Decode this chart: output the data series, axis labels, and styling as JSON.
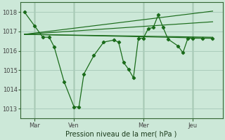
{
  "background_color": "#cce8d8",
  "plot_bg_color": "#cce8d8",
  "line_color": "#1a6b1a",
  "grid_color": "#aaccbb",
  "tick_color": "#444444",
  "xlabel": "Pression niveau de la mer( hPa )",
  "ylim": [
    1012.5,
    1018.5
  ],
  "yticks": [
    1013,
    1014,
    1015,
    1016,
    1017,
    1018
  ],
  "xlim": [
    -0.3,
    14.0
  ],
  "xtick_positions": [
    0.7,
    3.5,
    8.4,
    11.9
  ],
  "xtick_labels": [
    "Mar",
    "Ven",
    "Mer",
    "Jeu"
  ],
  "vline_positions": [
    0.7,
    3.5,
    8.4,
    11.9
  ],
  "main_x": [
    0.0,
    0.7,
    1.3,
    1.75,
    2.1,
    2.8,
    3.5,
    3.85,
    4.2,
    4.9,
    5.6,
    6.3,
    6.65,
    7.0,
    7.35,
    7.7,
    8.05,
    8.4,
    8.75,
    9.1,
    9.45,
    9.8,
    10.15,
    10.85,
    11.2,
    11.55,
    11.9,
    12.6,
    13.3
  ],
  "main_y": [
    1018.0,
    1017.3,
    1016.7,
    1016.7,
    1016.2,
    1014.4,
    1013.1,
    1013.1,
    1014.8,
    1015.75,
    1016.45,
    1016.55,
    1016.45,
    1015.4,
    1015.05,
    1014.6,
    1016.65,
    1016.65,
    1017.15,
    1017.2,
    1017.85,
    1017.2,
    1016.6,
    1016.25,
    1015.9,
    1016.65,
    1016.65,
    1016.65,
    1016.65
  ],
  "trend1_x": [
    0.0,
    13.3
  ],
  "trend1_y": [
    1016.85,
    1016.7
  ],
  "trend2_x": [
    0.0,
    13.3
  ],
  "trend2_y": [
    1016.85,
    1017.5
  ],
  "trend3_x": [
    0.0,
    13.3
  ],
  "trend3_y": [
    1016.85,
    1016.65
  ],
  "trend4_x": [
    0.0,
    13.3
  ],
  "trend4_y": [
    1016.85,
    1018.05
  ]
}
